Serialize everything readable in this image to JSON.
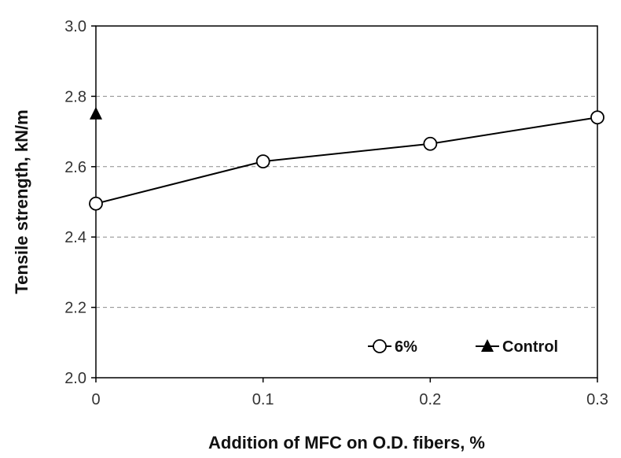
{
  "chart_data": {
    "type": "line",
    "title": "",
    "xlabel": "Addition of MFC on O.D. fibers, %",
    "ylabel": "Tensile strength, kN/m",
    "xlim": [
      0,
      0.3
    ],
    "ylim": [
      2.0,
      3.0
    ],
    "xticks": [
      "0",
      "0.1",
      "0.2",
      "0.3"
    ],
    "yticks": [
      "2.0",
      "2.2",
      "2.4",
      "2.6",
      "2.8",
      "3.0"
    ],
    "grid": "horizontal-dashed",
    "legend_position": "bottom-right",
    "series": [
      {
        "name": "6%",
        "marker": "open-circle",
        "line": true,
        "color": "#000000",
        "x": [
          0,
          0.1,
          0.2,
          0.3
        ],
        "y": [
          2.495,
          2.615,
          2.665,
          2.74
        ]
      },
      {
        "name": "Control",
        "marker": "filled-triangle",
        "line": true,
        "color": "#000000",
        "x": [
          0
        ],
        "y": [
          2.75
        ]
      }
    ]
  }
}
